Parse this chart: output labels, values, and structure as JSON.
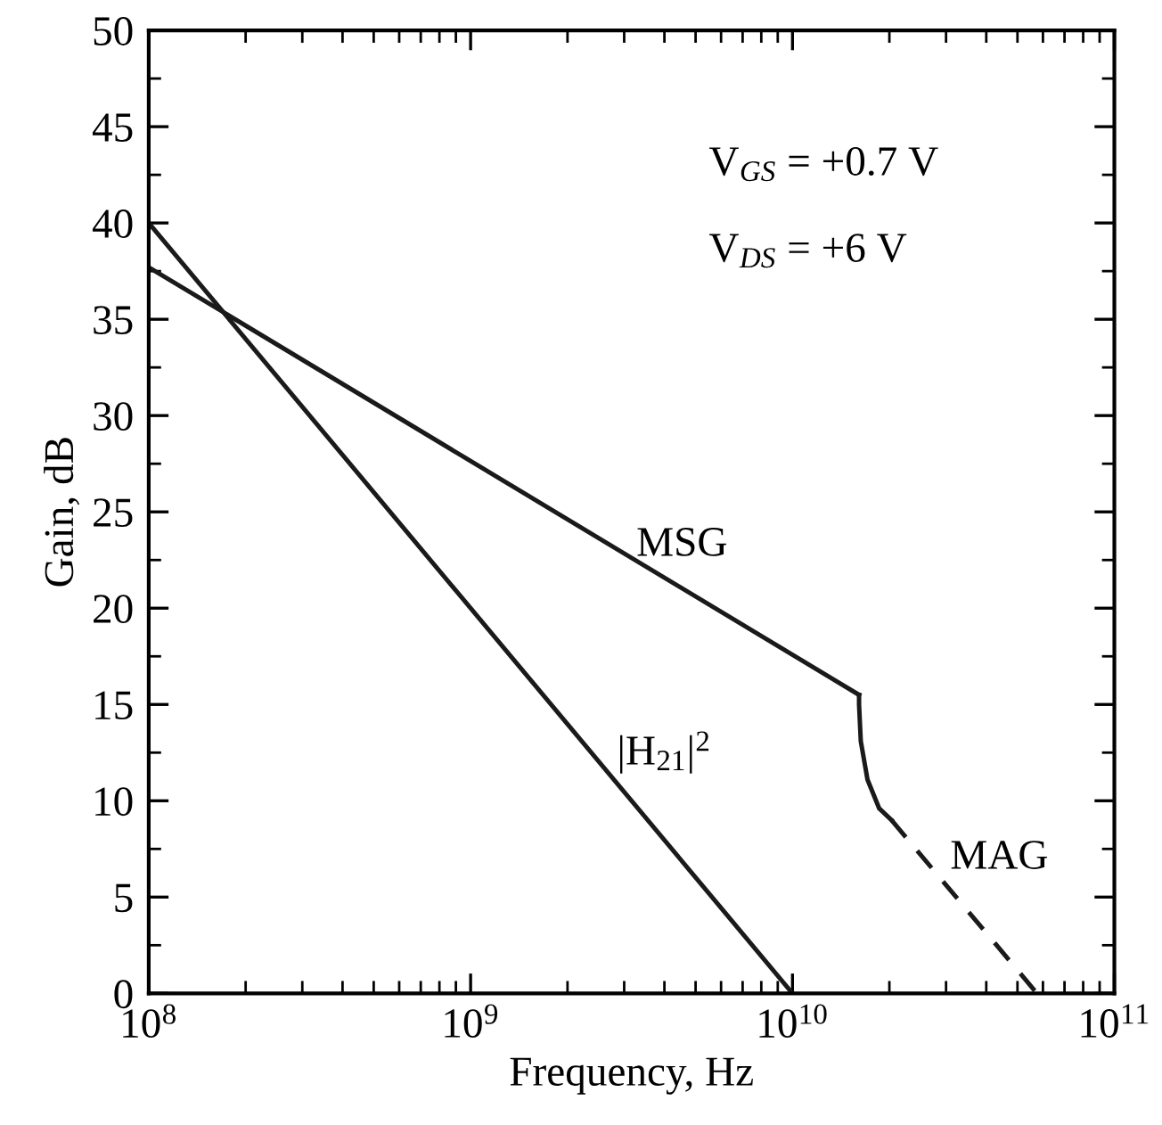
{
  "chart_data": {
    "type": "line",
    "xlabel": "Frequency, Hz",
    "ylabel": "Gain, dB",
    "log": "x",
    "grid": false,
    "legend": false,
    "marker": "none",
    "xlim": [
      100000000.0,
      100000000000.0
    ],
    "xticks": [
      {
        "value": 100000000.0,
        "label": "10$^{8}$"
      },
      {
        "value": 1000000000.0,
        "label": "10$^{9}$"
      },
      {
        "value": 10000000000.0,
        "label": "10$^{10}$"
      },
      {
        "value": 100000000000.0,
        "label": "10$^{11}$"
      }
    ],
    "ylim": [
      0,
      50
    ],
    "yticks": [
      0,
      5,
      10,
      15,
      20,
      25,
      30,
      35,
      40,
      45,
      50
    ],
    "series": [
      {
        "color": "#1a1a1a",
        "line_style": "solid",
        "x": [
          100000000.0,
          10000000000.0
        ],
        "values": [
          40,
          0
        ]
      },
      {
        "color": "#1a1a1a",
        "line_style": "solid",
        "x": [
          100000000.0,
          16100000000.0
        ],
        "values": [
          37.7,
          15.5
        ]
      },
      {
        "color": "#1a1a1a",
        "line_style": "solid",
        "x": [
          16100000000.0,
          16100000000.0,
          16300000000.0,
          17100000000.0,
          18600000000.0,
          20300000000.0
        ],
        "values": [
          15.5,
          15.0,
          13.1,
          11.1,
          9.6,
          9.0
        ]
      },
      {
        "color": "#1a1a1a",
        "line_style": "dashed",
        "x": [
          20300000000.0,
          57500000000.0
        ],
        "values": [
          9.0,
          0
        ]
      }
    ],
    "annotations": [
      "MSG",
      "|H$_{21}$|$^{2}$",
      "MAG",
      "V$_{GS}$ = +0.7 V",
      "V$_{DS}$ = +6 V"
    ]
  }
}
